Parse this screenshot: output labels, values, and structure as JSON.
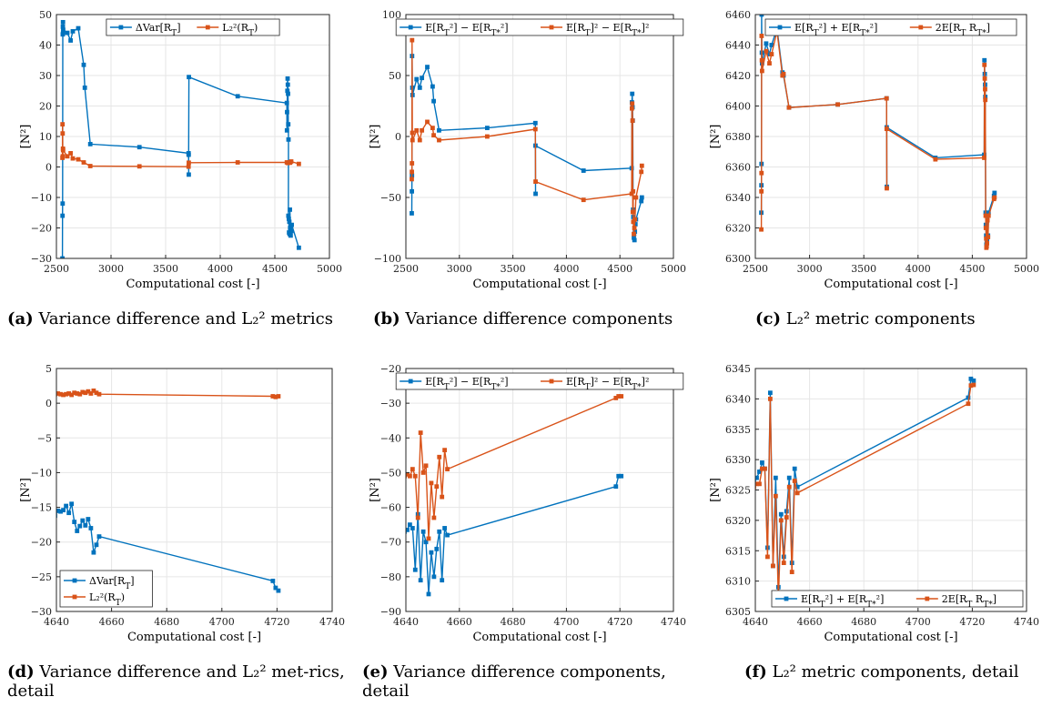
{
  "colors": {
    "blue": "#0072BD",
    "orange": "#D95319",
    "grid": "#e6e6e6",
    "axis": "#262626"
  },
  "captions": [
    {
      "label": "(a)",
      "text": "Variance difference and L₂² metrics"
    },
    {
      "label": "(b)",
      "text": "Variance difference components"
    },
    {
      "label": "(c)",
      "text": "L₂² metric components"
    },
    {
      "label": "(d)",
      "text": "Variance difference and L₂² met-rics, detail"
    },
    {
      "label": "(e)",
      "text": "Variance difference components, detail"
    },
    {
      "label": "(f)",
      "text": "L₂² metric components, detail"
    }
  ],
  "chart_data": [
    {
      "id": "a",
      "type": "line",
      "xlabel": "Computational cost [-]",
      "ylabel": "[N²]",
      "xlim": [
        2500,
        5000
      ],
      "ylim": [
        -30,
        50
      ],
      "xticks": [
        2500,
        3000,
        3500,
        4000,
        4500,
        5000
      ],
      "yticks": [
        -30,
        -20,
        -10,
        0,
        10,
        20,
        30,
        40,
        50
      ],
      "grid": true,
      "legend_position": "top-center",
      "legend_layout": "horizontal",
      "series": [
        {
          "name": "ΔVar[R_T]",
          "color": "blue",
          "x": [
            2555,
            2556,
            2557,
            2558,
            2560,
            2561,
            2559,
            2562,
            2600,
            2630,
            2650,
            2700,
            2750,
            2760,
            2810,
            3260,
            3710,
            3712,
            3711,
            3713,
            4160,
            4610,
            4611,
            4612,
            4615,
            4617,
            4619,
            4621,
            4623,
            4625,
            4624,
            4628,
            4630,
            4633,
            4635,
            4638,
            4640,
            4643,
            4645,
            4650,
            4655,
            4720
          ],
          "y": [
            -30,
            -16,
            -12,
            43.5,
            47.5,
            44,
            46,
            45,
            44,
            41.5,
            44.5,
            45.5,
            33.5,
            26,
            7.5,
            6.5,
            4.5,
            -2.5,
            4,
            29.5,
            23.2,
            21,
            12,
            18,
            25,
            29,
            27,
            24,
            14,
            9,
            -16,
            -17,
            -21.5,
            -18,
            -22,
            -14,
            -20,
            -21.5,
            -22.5,
            -21,
            -19,
            -26.5
          ]
        },
        {
          "name": "L₂²(R_T)",
          "color": "orange",
          "x": [
            2555,
            2556,
            2557,
            2558,
            2560,
            2561,
            2600,
            2630,
            2650,
            2700,
            2750,
            2810,
            3260,
            3710,
            3712,
            4160,
            4610,
            4620,
            4630,
            4640,
            4650,
            4720
          ],
          "y": [
            3,
            14,
            11,
            3.5,
            6,
            5.5,
            3.5,
            4.5,
            2.8,
            2.5,
            1.5,
            0.3,
            0.2,
            0.1,
            1.4,
            1.5,
            1.5,
            1.3,
            1.5,
            1.4,
            1.8,
            1.0
          ]
        }
      ]
    },
    {
      "id": "b",
      "type": "line",
      "xlabel": "Computational cost [-]",
      "ylabel": "[N²]",
      "xlim": [
        2500,
        5000
      ],
      "ylim": [
        -100,
        100
      ],
      "xticks": [
        2500,
        3000,
        3500,
        4000,
        4500,
        5000
      ],
      "yticks": [
        -100,
        -50,
        0,
        50,
        100
      ],
      "grid": true,
      "legend_position": "top-center",
      "legend_layout": "horizontal",
      "series": [
        {
          "name": "E[R_T²] − E[R_T*²]",
          "color": "blue",
          "x": [
            2555,
            2556,
            2557,
            2558,
            2560,
            2562,
            2600,
            2630,
            2650,
            2700,
            2750,
            2760,
            2810,
            3260,
            3710,
            3712,
            3711,
            4160,
            4610,
            4612,
            4615,
            4618,
            4620,
            4623,
            4625,
            4628,
            4630,
            4633,
            4636,
            4640,
            4645,
            4650,
            4700,
            4705
          ],
          "y": [
            -63,
            -45,
            -32,
            66,
            40,
            34,
            47,
            40,
            48,
            57,
            41,
            29,
            5,
            7,
            11,
            -47,
            -7.5,
            -28,
            -26,
            28,
            35,
            24,
            13,
            -60,
            -66,
            -70,
            -83,
            -80,
            -85,
            -78,
            -72,
            -68,
            -53,
            -50
          ]
        },
        {
          "name": "E[R_T]² − E[R_T*]²",
          "color": "orange",
          "x": [
            2555,
            2556,
            2557,
            2558,
            2560,
            2562,
            2600,
            2630,
            2650,
            2700,
            2750,
            2760,
            2810,
            3260,
            3710,
            3712,
            4160,
            4610,
            4612,
            4615,
            4618,
            4620,
            4623,
            4625,
            4630,
            4635,
            4640,
            4650,
            4700,
            4705
          ],
          "y": [
            -35,
            -29,
            -22,
            79,
            3,
            -3,
            5,
            -3,
            5,
            12,
            7,
            1,
            -3,
            0,
            6,
            -37,
            -52,
            -47,
            23,
            27,
            13,
            -62,
            -45,
            -70,
            -80,
            -75,
            -68,
            -50,
            -29,
            -24
          ]
        }
      ]
    },
    {
      "id": "c",
      "type": "line",
      "xlabel": "Computational cost [-]",
      "ylabel": "[N²]",
      "xlim": [
        2500,
        5000
      ],
      "ylim": [
        6300,
        6460
      ],
      "xticks": [
        2500,
        3000,
        3500,
        4000,
        4500,
        5000
      ],
      "yticks": [
        6300,
        6320,
        6340,
        6360,
        6380,
        6400,
        6420,
        6440,
        6460
      ],
      "grid": true,
      "legend_position": "top-center",
      "legend_layout": "horizontal",
      "series": [
        {
          "name": "E[R_T²] + E[R_T*²]",
          "color": "blue",
          "x": [
            2555,
            2556,
            2557,
            2558,
            2560,
            2562,
            2600,
            2630,
            2650,
            2700,
            2750,
            2760,
            2810,
            3260,
            3710,
            3712,
            3711,
            4160,
            4610,
            4612,
            4615,
            4618,
            4620,
            4623,
            4625,
            4628,
            4630,
            4633,
            4636,
            4640,
            4645,
            4650,
            4700,
            4705
          ],
          "y": [
            6330,
            6348,
            6362,
            6460,
            6435,
            6428,
            6441,
            6434,
            6440,
            6451,
            6422,
            6420,
            6399,
            6401,
            6405,
            6347,
            6386,
            6366,
            6368,
            6430,
            6421,
            6414,
            6406,
            6330,
            6322,
            6315,
            6309,
            6310,
            6312,
            6328,
            6315,
            6330,
            6341,
            6343
          ]
        },
        {
          "name": "2E[R_T R_T*]",
          "color": "orange",
          "x": [
            2555,
            2556,
            2557,
            2558,
            2560,
            2562,
            2600,
            2630,
            2650,
            2700,
            2750,
            2760,
            2810,
            3260,
            3710,
            3712,
            3711,
            4160,
            4610,
            4612,
            4615,
            4618,
            4620,
            4623,
            4625,
            4628,
            4630,
            4633,
            4636,
            4640,
            4645,
            4650,
            4700,
            4705
          ],
          "y": [
            6319,
            6344,
            6356,
            6446,
            6430,
            6423,
            6436,
            6428,
            6434,
            6449,
            6420,
            6421,
            6399,
            6401,
            6405,
            6346,
            6385,
            6365,
            6366,
            6427,
            6418,
            6411,
            6404,
            6328,
            6320,
            6313,
            6307,
            6308,
            6310,
            6325,
            6314,
            6328,
            6339,
            6340
          ]
        }
      ]
    },
    {
      "id": "d",
      "type": "line",
      "xlabel": "Computational cost [-]",
      "ylabel": "[N²]",
      "xlim": [
        4640,
        4740
      ],
      "ylim": [
        -30,
        5
      ],
      "xticks": [
        4640,
        4660,
        4680,
        4700,
        4720,
        4740
      ],
      "yticks": [
        -30,
        -25,
        -20,
        -15,
        -10,
        -5,
        0,
        5
      ],
      "grid": true,
      "legend_position": "bottom-left",
      "legend_layout": "vertical",
      "series": [
        {
          "name": "ΔVar[R_T]",
          "color": "blue",
          "x": [
            4639.5,
            4640.5,
            4641.5,
            4642.5,
            4643.5,
            4644.5,
            4645.5,
            4646.5,
            4647.5,
            4648.5,
            4649.5,
            4650.5,
            4651.5,
            4652.5,
            4653.5,
            4654.5,
            4655.5,
            4718.5,
            4719.5,
            4720.5
          ],
          "y": [
            -16.2,
            -15.5,
            -15.6,
            -15.4,
            -14.8,
            -15.8,
            -14.5,
            -17.1,
            -18.4,
            -17.7,
            -16.9,
            -17.6,
            -16.7,
            -18.0,
            -21.5,
            -20.4,
            -19.2,
            -25.6,
            -26.6,
            -27.0
          ]
        },
        {
          "name": "L₂²(R_T)",
          "color": "orange",
          "x": [
            4639.5,
            4640.5,
            4641.5,
            4642.5,
            4643.5,
            4644.5,
            4645.5,
            4646.5,
            4647.5,
            4648.5,
            4649.5,
            4650.5,
            4651.5,
            4652.5,
            4653.5,
            4654.5,
            4655.5,
            4718.5,
            4719.5,
            4720.5
          ],
          "y": [
            1.3,
            1.4,
            1.3,
            1.2,
            1.3,
            1.4,
            1.2,
            1.5,
            1.4,
            1.3,
            1.6,
            1.5,
            1.7,
            1.4,
            1.8,
            1.5,
            1.3,
            1.0,
            0.9,
            1.0
          ]
        }
      ]
    },
    {
      "id": "e",
      "type": "line",
      "xlabel": "Computational cost [-]",
      "ylabel": "[N²]",
      "xlim": [
        4640,
        4740
      ],
      "ylim": [
        -90,
        -20
      ],
      "xticks": [
        4640,
        4660,
        4680,
        4700,
        4720,
        4740
      ],
      "yticks": [
        -90,
        -80,
        -70,
        -60,
        -50,
        -40,
        -30,
        -20
      ],
      "grid": true,
      "legend_position": "top-center",
      "legend_layout": "horizontal",
      "series": [
        {
          "name": "E[R_T²] − E[R_T*²]",
          "color": "blue",
          "x": [
            4639.5,
            4640.5,
            4641.5,
            4642.5,
            4643.5,
            4644.5,
            4645.5,
            4646.5,
            4647.5,
            4648.5,
            4649.5,
            4650.5,
            4651.5,
            4652.5,
            4653.5,
            4654.5,
            4655.5,
            4718.5,
            4719.5,
            4720.5
          ],
          "y": [
            -67,
            -66.5,
            -65,
            -66,
            -78,
            -62,
            -81,
            -67,
            -70,
            -85,
            -73,
            -80,
            -72,
            -67,
            -81,
            -66,
            -68,
            -54,
            -51,
            -51
          ]
        },
        {
          "name": "E[R_T]² − E[R_T*]²",
          "color": "orange",
          "x": [
            4639.5,
            4640.5,
            4641.5,
            4642.5,
            4643.5,
            4644.5,
            4645.5,
            4646.5,
            4647.5,
            4648.5,
            4649.5,
            4650.5,
            4651.5,
            4652.5,
            4653.5,
            4654.5,
            4655.5,
            4718.5,
            4719.5,
            4720.5
          ],
          "y": [
            -51,
            -50.5,
            -51,
            -49,
            -51,
            -63,
            -38.5,
            -50,
            -48,
            -69,
            -53,
            -63,
            -54,
            -45.5,
            -57,
            -43.5,
            -49,
            -28.5,
            -28,
            -28
          ]
        }
      ]
    },
    {
      "id": "f",
      "type": "line",
      "xlabel": "Computational cost [-]",
      "ylabel": "[N²]",
      "xlim": [
        4640,
        4740
      ],
      "ylim": [
        6305,
        6345
      ],
      "xticks": [
        4640,
        4660,
        4680,
        4700,
        4720,
        4740
      ],
      "yticks": [
        6305,
        6310,
        6315,
        6320,
        6325,
        6330,
        6335,
        6340,
        6345
      ],
      "grid": true,
      "legend_position": "bottom-right",
      "legend_layout": "horizontal",
      "series": [
        {
          "name": "E[R_T²] + E[R_T*²]",
          "color": "blue",
          "x": [
            4639.5,
            4640.5,
            4641.5,
            4642.5,
            4643.5,
            4644.5,
            4645.5,
            4646.5,
            4647.5,
            4648.5,
            4649.5,
            4650.5,
            4651.5,
            4652.5,
            4653.5,
            4654.5,
            4655.5,
            4718.5,
            4719.5,
            4720.5
          ],
          "y": [
            6326.5,
            6327,
            6328,
            6329.5,
            6328.5,
            6315.5,
            6341,
            6312.5,
            6327,
            6309,
            6321,
            6314,
            6321.5,
            6327,
            6313,
            6328.5,
            6325.5,
            6340.2,
            6343.3,
            6343
          ]
        },
        {
          "name": "2E[R_T R_T*]",
          "color": "orange",
          "x": [
            4639.5,
            4640.5,
            4641.5,
            4642.5,
            4643.5,
            4644.5,
            4645.5,
            4646.5,
            4647.5,
            4648.5,
            4649.5,
            4650.5,
            4651.5,
            4652.5,
            4653.5,
            4654.5,
            4655.5,
            4718.5,
            4719.5,
            4720.5
          ],
          "y": [
            6325.5,
            6326,
            6326,
            6328.5,
            6328.5,
            6314,
            6340,
            6312.5,
            6324,
            6307,
            6320,
            6313,
            6320.5,
            6325.5,
            6311.5,
            6326.5,
            6324.5,
            6339.2,
            6342.2,
            6342.3
          ]
        }
      ]
    }
  ]
}
